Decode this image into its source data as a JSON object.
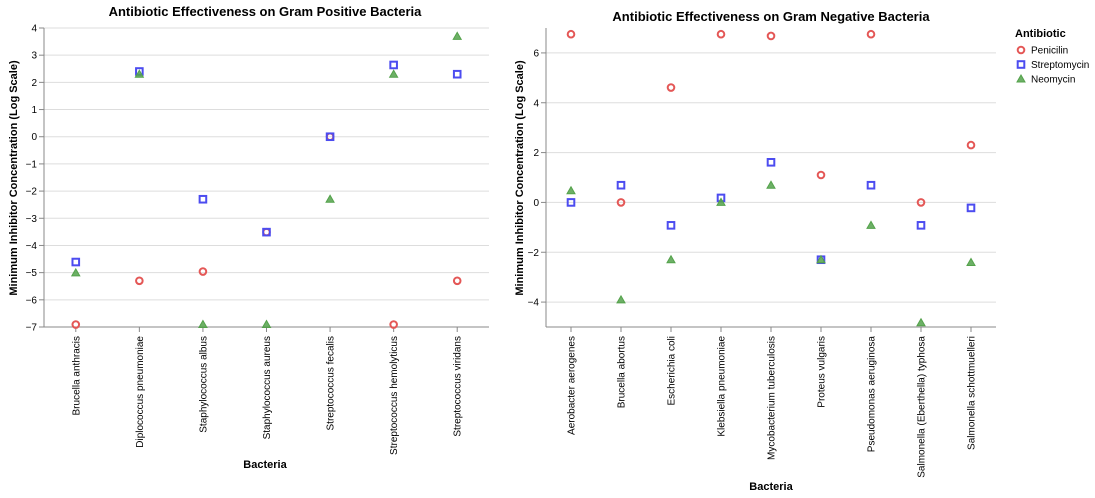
{
  "chart_data": [
    {
      "type": "scatter",
      "title": "Antibiotic Effectiveness on Gram Positive Bacteria",
      "xlabel": "Bacteria",
      "ylabel": "Minimum Inhibitor Concentration (Log Scale)",
      "ylim": [
        -7,
        4
      ],
      "yticks": [
        "4",
        "3",
        "2",
        "1",
        "0",
        "−1",
        "−2",
        "−3",
        "−4",
        "−5",
        "−6",
        "−7"
      ],
      "grid": true,
      "categories": [
        "Brucella anthracis",
        "Diplococcus pneumoniae",
        "Staphylococcus albus",
        "Staphylococcus aureus",
        "Streptococcus fecalis",
        "Streptococcus hemolyticus",
        "Streptococcus viridans"
      ],
      "series": [
        {
          "name": "Penicilin",
          "values": [
            -6.91,
            -5.3,
            -4.96,
            -3.51,
            0.0,
            -6.91,
            -5.3
          ]
        },
        {
          "name": "Streptomycin",
          "values": [
            -4.61,
            2.4,
            -2.3,
            -3.51,
            0.0,
            2.64,
            2.3
          ]
        },
        {
          "name": "Neomycin",
          "values": [
            -5.01,
            2.3,
            -6.91,
            -6.91,
            -2.3,
            2.3,
            3.69
          ]
        }
      ]
    },
    {
      "type": "scatter",
      "title": "Antibiotic Effectiveness on Gram Negative Bacteria",
      "xlabel": "Bacteria",
      "ylabel": "Minimum Inhibitor Concentration (Log Scale)",
      "ylim": [
        -5,
        7
      ],
      "yticks": [
        "6",
        "4",
        "2",
        "0",
        "−2",
        "−4"
      ],
      "grid": true,
      "categories": [
        "Aerobacter aerogenes",
        "Brucella abortus",
        "Escherichia coli",
        "Klebsiella pneumoniae",
        "Mycobacterium tuberculosis",
        "Proteus vulgaris",
        "Pseudomonas aeruginosa",
        "Salmonella (Eberthella) typhosa",
        "Salmonella schottmuelleri"
      ],
      "series": [
        {
          "name": "Penicilin",
          "values": [
            6.75,
            0.0,
            4.61,
            6.75,
            6.68,
            1.1,
            6.75,
            0.0,
            2.3
          ]
        },
        {
          "name": "Streptomycin",
          "values": [
            0.0,
            0.69,
            -0.92,
            0.18,
            1.61,
            -2.3,
            0.69,
            -0.92,
            -0.22
          ]
        },
        {
          "name": "Neomycin",
          "values": [
            0.47,
            -3.91,
            -2.3,
            0.0,
            0.69,
            -2.3,
            -0.92,
            -4.83,
            -2.41
          ]
        }
      ]
    }
  ],
  "legend": {
    "title": "Antibiotic",
    "placement": "top-right",
    "items": [
      {
        "label": "Penicilin",
        "shape": "circle",
        "color": "#e45756"
      },
      {
        "label": "Streptomycin",
        "shape": "square",
        "color": "#4c4cf0"
      },
      {
        "label": "Neomycin",
        "shape": "triangle",
        "color": "#54a24b"
      }
    ]
  }
}
